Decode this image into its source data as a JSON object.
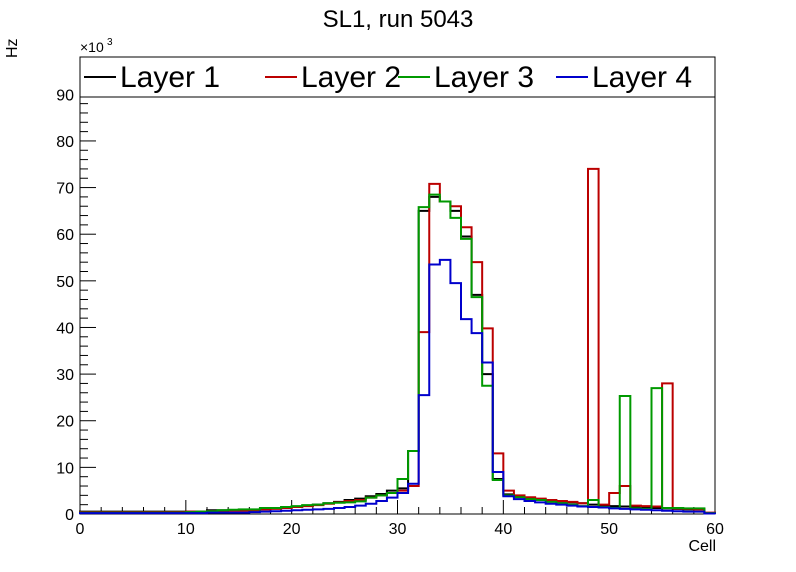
{
  "chart_data": {
    "type": "histogram",
    "title": "SL1, run 5043",
    "xlabel": "Cell",
    "ylabel": "Hz",
    "y_multiplier": "×10",
    "y_multiplier_exp": "3",
    "xlim": [
      0,
      60
    ],
    "ylim": [
      0,
      98
    ],
    "x_ticks": [
      0,
      10,
      20,
      30,
      40,
      50,
      60
    ],
    "y_ticks": [
      0,
      10,
      20,
      30,
      40,
      50,
      60,
      70,
      80,
      90
    ],
    "legend_position": "top",
    "grid": false,
    "bin_width": 1,
    "series": [
      {
        "name": "Layer 1",
        "color": "#000000",
        "values": [
          0.5,
          0.5,
          0.5,
          0.5,
          0.5,
          0.5,
          0.5,
          0.5,
          0.5,
          0.5,
          0.5,
          0.5,
          0.8,
          0.8,
          0.8,
          0.8,
          0.8,
          1.0,
          1.2,
          1.4,
          1.6,
          1.8,
          2.0,
          2.3,
          2.6,
          3.0,
          3.3,
          3.8,
          4.3,
          5.0,
          5.5,
          13.5,
          65.0,
          68.0,
          67.0,
          65.0,
          59.5,
          47.0,
          30.0,
          7.5,
          4.2,
          3.8,
          3.5,
          3.2,
          3.0,
          2.7,
          2.5,
          2.3,
          2.0,
          1.8,
          1.7,
          1.6,
          1.5,
          1.4,
          1.3,
          1.2,
          1.1,
          1.0,
          1.0,
          0.2
        ]
      },
      {
        "name": "Layer 2",
        "color": "#bb0000",
        "values": [
          0.4,
          0.4,
          0.4,
          0.4,
          0.4,
          0.4,
          0.4,
          0.4,
          0.4,
          0.4,
          0.5,
          0.5,
          0.6,
          0.6,
          0.7,
          0.7,
          0.8,
          1.0,
          1.1,
          1.3,
          1.5,
          1.7,
          1.9,
          2.2,
          2.5,
          2.8,
          3.0,
          3.5,
          4.0,
          4.5,
          5.0,
          6.0,
          39.0,
          70.8,
          67.0,
          66.0,
          61.5,
          54.0,
          39.8,
          13.0,
          5.0,
          4.0,
          3.6,
          3.3,
          3.0,
          2.8,
          2.6,
          2.3,
          74.0,
          2.0,
          4.5,
          6.0,
          1.8,
          1.7,
          1.6,
          28.0,
          1.2,
          1.1,
          1.0,
          0.3
        ]
      },
      {
        "name": "Layer 3",
        "color": "#009900",
        "values": [
          0.3,
          0.3,
          0.3,
          0.3,
          0.3,
          0.3,
          0.3,
          0.3,
          0.3,
          0.3,
          0.4,
          0.5,
          0.6,
          0.8,
          0.9,
          1.0,
          1.0,
          1.3,
          1.3,
          1.5,
          1.7,
          1.9,
          2.0,
          2.3,
          2.4,
          2.5,
          2.7,
          3.5,
          4.0,
          4.5,
          7.5,
          13.5,
          65.8,
          68.5,
          67.0,
          63.5,
          59.0,
          46.5,
          27.5,
          7.3,
          4.0,
          3.6,
          3.2,
          3.0,
          2.6,
          2.3,
          2.0,
          1.7,
          3.0,
          1.5,
          1.3,
          25.3,
          1.2,
          1.1,
          27.0,
          1.3,
          1.3,
          1.2,
          1.2,
          0.2
        ]
      },
      {
        "name": "Layer 4",
        "color": "#0000cc",
        "values": [
          0.2,
          0.2,
          0.2,
          0.2,
          0.2,
          0.2,
          0.2,
          0.2,
          0.2,
          0.2,
          0.2,
          0.2,
          0.3,
          0.3,
          0.3,
          0.3,
          0.4,
          0.5,
          0.6,
          0.7,
          0.8,
          0.9,
          1.0,
          1.1,
          1.3,
          1.5,
          1.8,
          2.2,
          2.8,
          3.5,
          4.5,
          6.5,
          25.5,
          53.5,
          54.5,
          49.5,
          41.8,
          38.8,
          32.5,
          9.0,
          3.8,
          3.2,
          2.8,
          2.5,
          2.2,
          2.0,
          1.8,
          1.6,
          1.5,
          1.4,
          1.2,
          1.1,
          1.0,
          0.9,
          0.8,
          0.7,
          0.6,
          0.5,
          0.5,
          0.1
        ]
      }
    ]
  }
}
